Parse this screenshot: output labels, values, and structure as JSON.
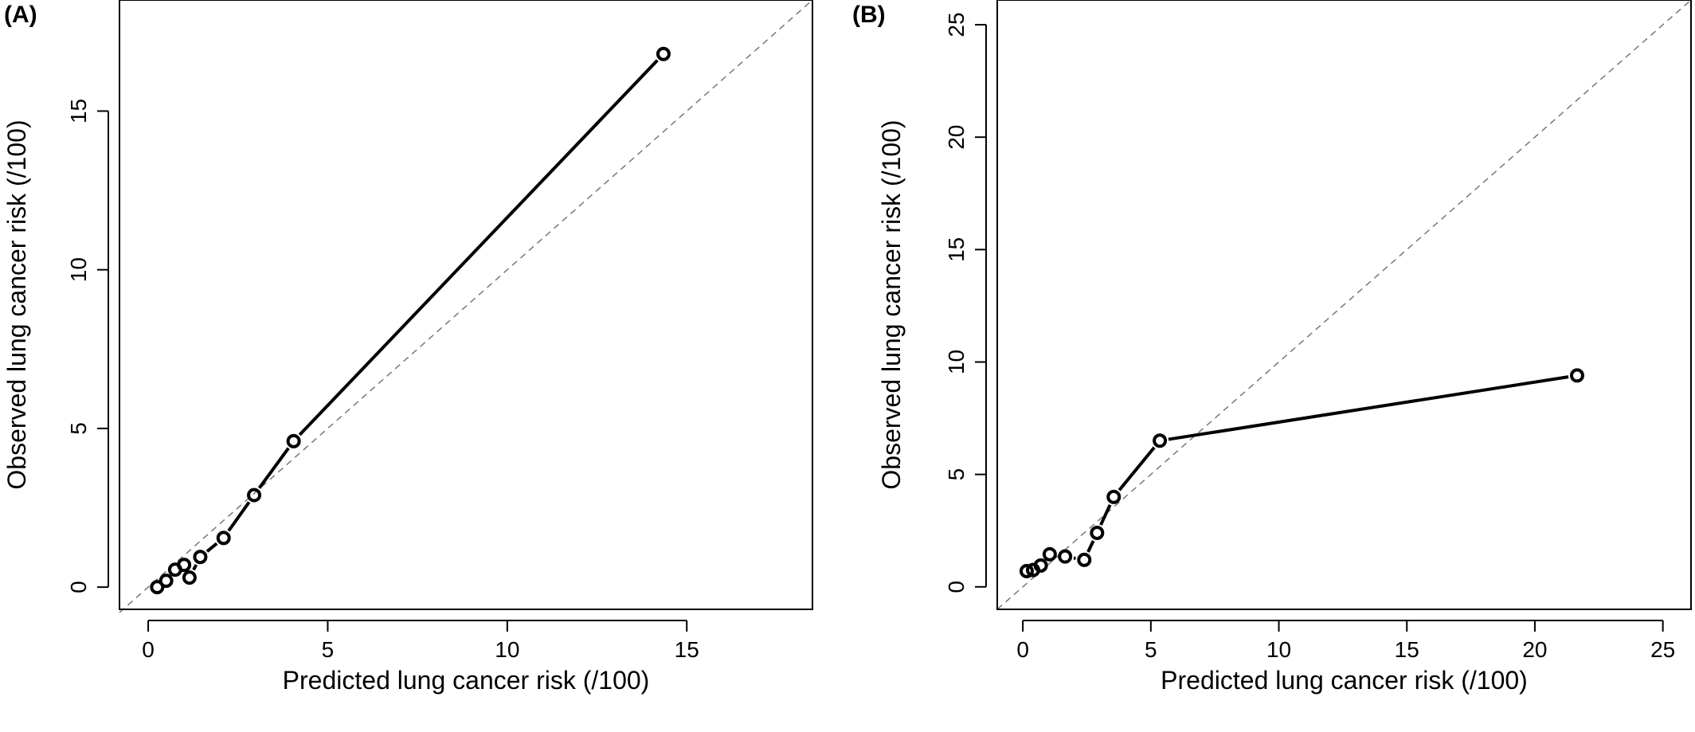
{
  "colors": {
    "background": "#ffffff",
    "foreground": "#000000",
    "reference_line": "#777777"
  },
  "chart_data": [
    {
      "type": "line",
      "panel_label": "(A)",
      "title": "",
      "xlabel": "Predicted lung cancer risk (/100)",
      "ylabel": "Observed lung cancer risk (/100)",
      "xlim": [
        -0.8,
        18.5
      ],
      "ylim": [
        -0.7,
        18.5
      ],
      "xticks": [
        0,
        5,
        10,
        15
      ],
      "yticks": [
        0,
        5,
        10,
        15
      ],
      "grid": false,
      "legend": "none",
      "reference_line": {
        "style": "dashed",
        "from": [
          -0.8,
          -0.8
        ],
        "to": [
          18.5,
          18.5
        ]
      },
      "series": [
        {
          "marker": "open-circle",
          "line": "solid-black-thick",
          "x": [
            0.25,
            0.5,
            0.75,
            1.0,
            1.15,
            1.45,
            2.1,
            2.95,
            4.05,
            14.35
          ],
          "y": [
            0.0,
            0.2,
            0.55,
            0.7,
            0.3,
            0.95,
            1.55,
            2.9,
            4.6,
            16.8
          ]
        }
      ]
    },
    {
      "type": "line",
      "panel_label": "(B)",
      "title": "",
      "xlabel": "Predicted lung cancer risk (/100)",
      "ylabel": "Observed lung cancer risk (/100)",
      "xlim": [
        -1.0,
        26.1
      ],
      "ylim": [
        -1.0,
        26.1
      ],
      "xticks": [
        0,
        5,
        10,
        15,
        20,
        25
      ],
      "yticks": [
        0,
        5,
        10,
        15,
        20,
        25
      ],
      "grid": false,
      "legend": "none",
      "reference_line": {
        "style": "dashed",
        "from": [
          -1.0,
          -1.0
        ],
        "to": [
          26.1,
          26.1
        ]
      },
      "series": [
        {
          "marker": "open-circle",
          "line": "solid-black-thick",
          "x": [
            0.15,
            0.4,
            0.7,
            1.05,
            1.65,
            2.4,
            2.9,
            3.55,
            5.35,
            21.65
          ],
          "y": [
            0.7,
            0.75,
            0.95,
            1.45,
            1.35,
            1.2,
            2.4,
            4.0,
            6.5,
            9.4
          ]
        }
      ]
    }
  ]
}
